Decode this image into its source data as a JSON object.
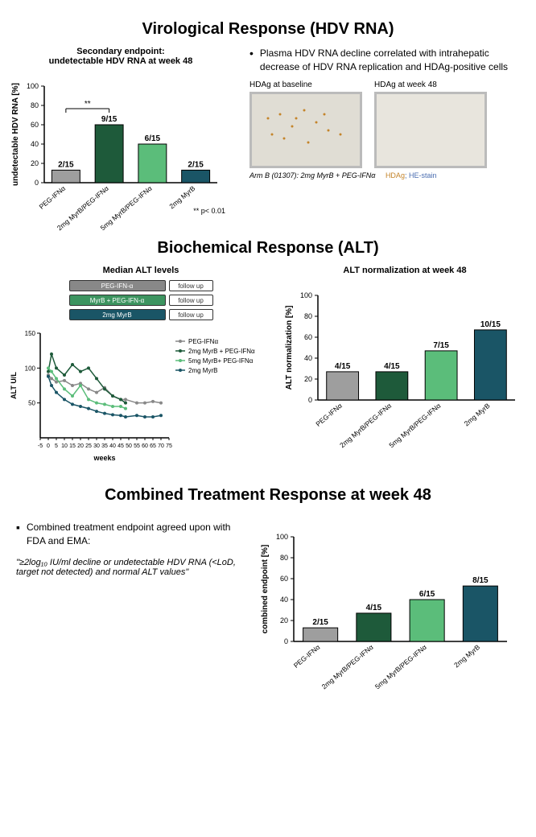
{
  "section1": {
    "title": "Virological Response (HDV RNA)",
    "subtitle": "Secondary endpoint:\nundetectable HDV RNA at week 48",
    "bullet": "Plasma HDV RNA decline correlated with intrahepatic decrease of HDV RNA replication and HDAg-positive cells",
    "histo_baseline": "HDAg at baseline",
    "histo_week48": "HDAg at week 48",
    "caption_arm": "Arm B (01307): 2mg MyrB + PEG-IFNα",
    "caption_stain1": "HDAg",
    "caption_stain2": "; HE-stain",
    "pval": "** p< 0.01",
    "chart1": {
      "type": "bar",
      "ylabel": "undetectable HDV RNA [%]",
      "ylim": [
        0,
        100
      ],
      "ytick_step": 20,
      "categories": [
        "PEG-IFNα",
        "2mg MyrB/PEG-IFNα",
        "5mg MyrB/PEG-IFNα",
        "2mg MyrB"
      ],
      "values": [
        13,
        60,
        40,
        13
      ],
      "top_labels": [
        "2/15",
        "9/15",
        "6/15",
        "2/15"
      ],
      "bar_colors": [
        "#9e9e9e",
        "#1e5a3a",
        "#5bbd7a",
        "#1a5566"
      ],
      "border_color": "#000",
      "sig_bracket": {
        "from": 0,
        "to": 1,
        "label": "**"
      }
    }
  },
  "section2": {
    "title": "Biochemical Response (ALT)",
    "left_subtitle": "Median ALT levels",
    "right_subtitle": "ALT normalization at week 48",
    "treatment_bars": [
      {
        "label": "PEG-IFN-α",
        "color": "#888888"
      },
      {
        "label": "MyrB + PEG-IFN-α",
        "color": "#3d9460"
      },
      {
        "label": "2mg MyrB",
        "color": "#1a5566"
      }
    ],
    "followup": "follow up",
    "line_chart": {
      "type": "line",
      "xlabel": "weeks",
      "ylabel": "ALT U/L",
      "xlim": [
        -5,
        75
      ],
      "ylim": [
        0,
        150
      ],
      "xticks": [
        -5,
        0,
        5,
        10,
        15,
        20,
        25,
        30,
        35,
        40,
        45,
        50,
        55,
        60,
        65,
        70,
        75
      ],
      "yticks": [
        50,
        100,
        150
      ],
      "series": [
        {
          "name": "PEG-IFNα",
          "color": "#888888",
          "points": [
            [
              0,
              90
            ],
            [
              2,
              85
            ],
            [
              5,
              80
            ],
            [
              10,
              82
            ],
            [
              15,
              75
            ],
            [
              20,
              78
            ],
            [
              25,
              70
            ],
            [
              30,
              65
            ],
            [
              35,
              72
            ],
            [
              40,
              60
            ],
            [
              45,
              55
            ],
            [
              48,
              55
            ],
            [
              55,
              50
            ],
            [
              60,
              50
            ],
            [
              65,
              52
            ],
            [
              70,
              50
            ]
          ]
        },
        {
          "name": "2mg MyrB + PEG-IFNα",
          "color": "#1e5a3a",
          "points": [
            [
              0,
              95
            ],
            [
              2,
              120
            ],
            [
              5,
              100
            ],
            [
              10,
              90
            ],
            [
              15,
              105
            ],
            [
              20,
              95
            ],
            [
              25,
              100
            ],
            [
              30,
              85
            ],
            [
              35,
              70
            ],
            [
              40,
              60
            ],
            [
              45,
              55
            ],
            [
              48,
              50
            ]
          ]
        },
        {
          "name": "5mg MyrB+ PEG-IFNα",
          "color": "#5bbd7a",
          "points": [
            [
              0,
              100
            ],
            [
              2,
              95
            ],
            [
              5,
              85
            ],
            [
              10,
              70
            ],
            [
              15,
              60
            ],
            [
              20,
              75
            ],
            [
              25,
              55
            ],
            [
              30,
              50
            ],
            [
              35,
              48
            ],
            [
              40,
              45
            ],
            [
              45,
              45
            ],
            [
              48,
              42
            ]
          ]
        },
        {
          "name": "2mg MyrB",
          "color": "#1a5566",
          "points": [
            [
              0,
              88
            ],
            [
              2,
              75
            ],
            [
              5,
              65
            ],
            [
              10,
              55
            ],
            [
              15,
              48
            ],
            [
              20,
              45
            ],
            [
              25,
              42
            ],
            [
              30,
              38
            ],
            [
              35,
              35
            ],
            [
              40,
              33
            ],
            [
              45,
              32
            ],
            [
              48,
              30
            ],
            [
              55,
              32
            ],
            [
              60,
              30
            ],
            [
              65,
              30
            ],
            [
              70,
              32
            ]
          ]
        }
      ]
    },
    "chart2": {
      "type": "bar",
      "ylabel": "ALT normalization [%]",
      "ylim": [
        0,
        100
      ],
      "ytick_step": 20,
      "categories": [
        "PEG-IFNα",
        "2mg MyrB/PEG-IFNα",
        "5mg MyrB/PEG-IFNα",
        "2mg MyrB"
      ],
      "values": [
        27,
        27,
        47,
        67
      ],
      "top_labels": [
        "4/15",
        "4/15",
        "7/15",
        "10/15"
      ],
      "bar_colors": [
        "#9e9e9e",
        "#1e5a3a",
        "#5bbd7a",
        "#1a5566"
      ]
    }
  },
  "section3": {
    "title": "Combined Treatment Response at week 48",
    "bullet": "Combined treatment endpoint agreed upon with FDA and EMA:",
    "quote": "\"≥2log₁₀ IU/ml decline or undetectable HDV RNA (<LoD, target not detected) and normal ALT values\"",
    "chart3": {
      "type": "bar",
      "ylabel": "combined endpoint [%]",
      "ylim": [
        0,
        100
      ],
      "ytick_step": 20,
      "categories": [
        "PEG-IFNα",
        "2mg MyrB/PEG-IFNα",
        "5mg MyrB/PEG-IFNα",
        "2mg MyrB"
      ],
      "values": [
        13,
        27,
        40,
        53
      ],
      "top_labels": [
        "2/15",
        "4/15",
        "6/15",
        "8/15"
      ],
      "bar_colors": [
        "#9e9e9e",
        "#1e5a3a",
        "#5bbd7a",
        "#1a5566"
      ]
    }
  }
}
